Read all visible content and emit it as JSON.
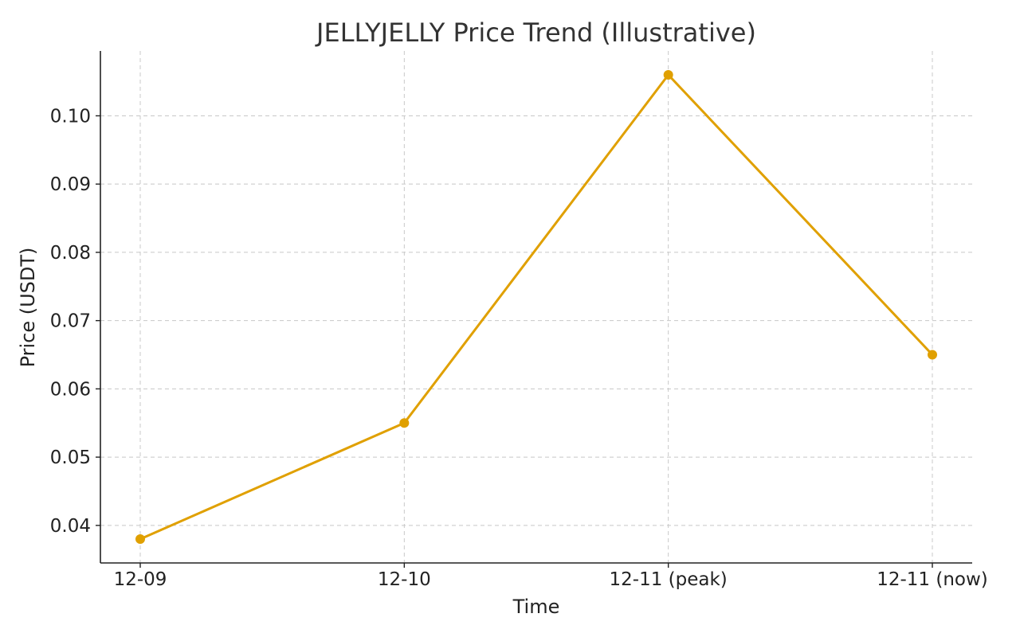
{
  "chart_data": {
    "type": "line",
    "title": "JELLYJELLY Price Trend (Illustrative)",
    "xlabel": "Time",
    "ylabel": "Price (USDT)",
    "categories": [
      "12-09",
      "12-10",
      "12-11 (peak)",
      "12-11 (now)"
    ],
    "series": [
      {
        "values": [
          0.038,
          0.055,
          0.106,
          0.065
        ],
        "color": "#e0a000"
      }
    ],
    "ylim": [
      0.0345,
      0.1095
    ],
    "yticks": [
      0.04,
      0.05,
      0.06,
      0.07,
      0.08,
      0.09,
      0.1
    ],
    "ytick_labels": [
      "0.04",
      "0.05",
      "0.06",
      "0.07",
      "0.08",
      "0.09",
      "0.10"
    ],
    "grid": true,
    "markers": true
  }
}
